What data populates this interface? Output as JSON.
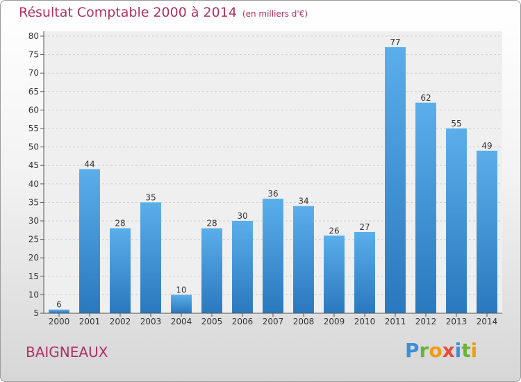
{
  "title": "Résultat Comptable 2000 à 2014",
  "subtitle": "(en milliers d'€)",
  "city": "BAIGNEAUX",
  "logo": {
    "letters": [
      "P",
      "r",
      "o",
      "x",
      "i",
      "t",
      "i"
    ],
    "colors": [
      "#3a8fd8",
      "#6cb23a",
      "#f39c12",
      "#e74c3c",
      "#3a8fd8",
      "#6cb23a",
      "#f39c12"
    ]
  },
  "chart_data": {
    "type": "bar",
    "categories": [
      "2000",
      "2001",
      "2002",
      "2003",
      "2004",
      "2005",
      "2006",
      "2007",
      "2008",
      "2009",
      "2010",
      "2011",
      "2012",
      "2013",
      "2014"
    ],
    "values": [
      6,
      44,
      28,
      35,
      10,
      28,
      30,
      36,
      34,
      26,
      27,
      77,
      62,
      55,
      49
    ],
    "ylim": [
      5,
      80
    ],
    "yticks": [
      5,
      10,
      15,
      20,
      25,
      30,
      35,
      40,
      45,
      50,
      55,
      60,
      65,
      70,
      75,
      80
    ],
    "grid": true,
    "bar_color": "#3a8fd8"
  }
}
